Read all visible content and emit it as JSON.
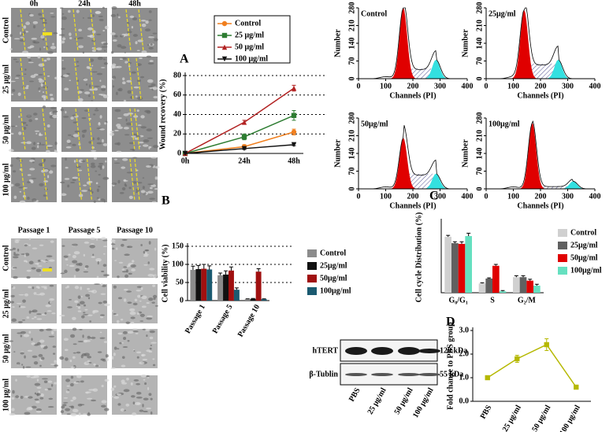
{
  "micrographs_top": {
    "columns": [
      "0h",
      "24h",
      "48h"
    ],
    "rows": [
      "Control",
      "25 μg/ml",
      "50 μg/ml",
      "100 μg/ml"
    ]
  },
  "micrographs_bottom": {
    "columns": [
      "Passage 1",
      "Passage 5",
      "Passage 10"
    ],
    "rows": [
      "Control",
      "25 μg/ml",
      "50 μg/ml",
      "100 μg/ml"
    ]
  },
  "flow_cytometry": {
    "ylabel": "Number",
    "xlabel": "Channels (PI)",
    "xticks": [
      0,
      100,
      200,
      300,
      400
    ],
    "yticks": [
      0,
      70,
      140,
      210,
      280
    ],
    "panels": [
      "Control",
      "25μg/ml",
      "50μg/ml",
      "100μg/ml"
    ]
  },
  "western_blot": {
    "bands": [
      {
        "name": "hTERT",
        "size": "120 kDa"
      },
      {
        "name": "β-Tublin",
        "size": "55 kDa"
      }
    ],
    "lanes": [
      "PBS",
      "25 μg/ml",
      "50 μg/ml",
      "100 μg/ml"
    ]
  },
  "chart_data": [
    {
      "type": "line",
      "panel_label": "A",
      "ylabel": "Wound recovery (%)",
      "categories": [
        "0h",
        "24h",
        "48h"
      ],
      "ylim": [
        0,
        80
      ],
      "yticks": [
        0,
        20,
        40,
        60,
        80
      ],
      "grid": true,
      "series": [
        {
          "name": "Control",
          "color": "#f07f1e",
          "marker": "circle",
          "values": [
            0,
            7,
            22
          ],
          "errors": [
            0,
            2,
            3
          ]
        },
        {
          "name": "25 μg/ml",
          "color": "#2e7d32",
          "marker": "square",
          "values": [
            0,
            17,
            39
          ],
          "errors": [
            0,
            3,
            5
          ]
        },
        {
          "name": "50 μg/ml",
          "color": "#b22222",
          "marker": "triangle",
          "values": [
            0,
            32,
            67
          ],
          "errors": [
            0,
            2,
            3
          ]
        },
        {
          "name": "100 μg/ml",
          "color": "#111111",
          "marker": "triangle-down",
          "values": [
            0,
            5,
            9
          ],
          "errors": [
            0,
            1,
            1
          ]
        }
      ]
    },
    {
      "type": "bar",
      "panel_label": "B",
      "ylabel": "Cell viability (%)",
      "categories": [
        "Passage 1",
        "Passage 5",
        "Passage 10"
      ],
      "ylim": [
        0,
        150
      ],
      "yticks": [
        0,
        50,
        100,
        150
      ],
      "grid": true,
      "series": [
        {
          "name": "Control",
          "color": "#8c8c8c",
          "values": [
            85,
            70,
            4
          ],
          "errors": [
            10,
            6,
            1
          ]
        },
        {
          "name": "25μg/ml",
          "color": "#111111",
          "values": [
            87,
            72,
            5
          ],
          "errors": [
            10,
            10,
            1
          ]
        },
        {
          "name": "50μg/ml",
          "color": "#a01010",
          "values": [
            88,
            83,
            80
          ],
          "errors": [
            12,
            10,
            8
          ]
        },
        {
          "name": "100μg/ml",
          "color": "#1a5a70",
          "values": [
            86,
            30,
            4
          ],
          "errors": [
            10,
            5,
            1
          ]
        }
      ]
    },
    {
      "type": "bar",
      "panel_label": "C",
      "ylabel": "Cell cycle Distribution (%)",
      "categories": [
        "G₀/G₁",
        "S",
        "G₂/M"
      ],
      "ylim": [
        0,
        100
      ],
      "grid": false,
      "series": [
        {
          "name": "Control",
          "color": "#d0d0d0",
          "values": [
            79,
            13,
            22
          ],
          "errors": [
            2,
            1,
            2
          ]
        },
        {
          "name": "25μg/ml",
          "color": "#606060",
          "values": [
            70,
            20,
            22
          ],
          "errors": [
            2,
            1,
            2
          ]
        },
        {
          "name": "50μg/ml",
          "color": "#e00000",
          "values": [
            69,
            38,
            17
          ],
          "errors": [
            3,
            2,
            2
          ]
        },
        {
          "name": "100μg/ml",
          "color": "#66e0c0",
          "values": [
            80,
            2,
            10
          ],
          "errors": [
            4,
            1,
            2
          ]
        }
      ]
    },
    {
      "type": "line",
      "panel_label": "D",
      "ylabel": "Fold change to PBS group",
      "categories": [
        "PBS",
        "25 μg/ml",
        "50 μg/ml",
        "100 μg/ml"
      ],
      "ylim": [
        0,
        3
      ],
      "yticks": [
        {
          "value": 0,
          "label": "0.0"
        },
        {
          "value": 1,
          "label": "1.0"
        },
        {
          "value": 2,
          "label": "2.0"
        },
        {
          "value": 3,
          "label": "3.0"
        }
      ],
      "grid": false,
      "series": [
        {
          "color": "#b5b800",
          "marker": "square",
          "values": [
            1.0,
            1.8,
            2.4,
            0.6
          ],
          "errors": [
            0.05,
            0.15,
            0.25,
            0.07
          ]
        }
      ]
    }
  ]
}
